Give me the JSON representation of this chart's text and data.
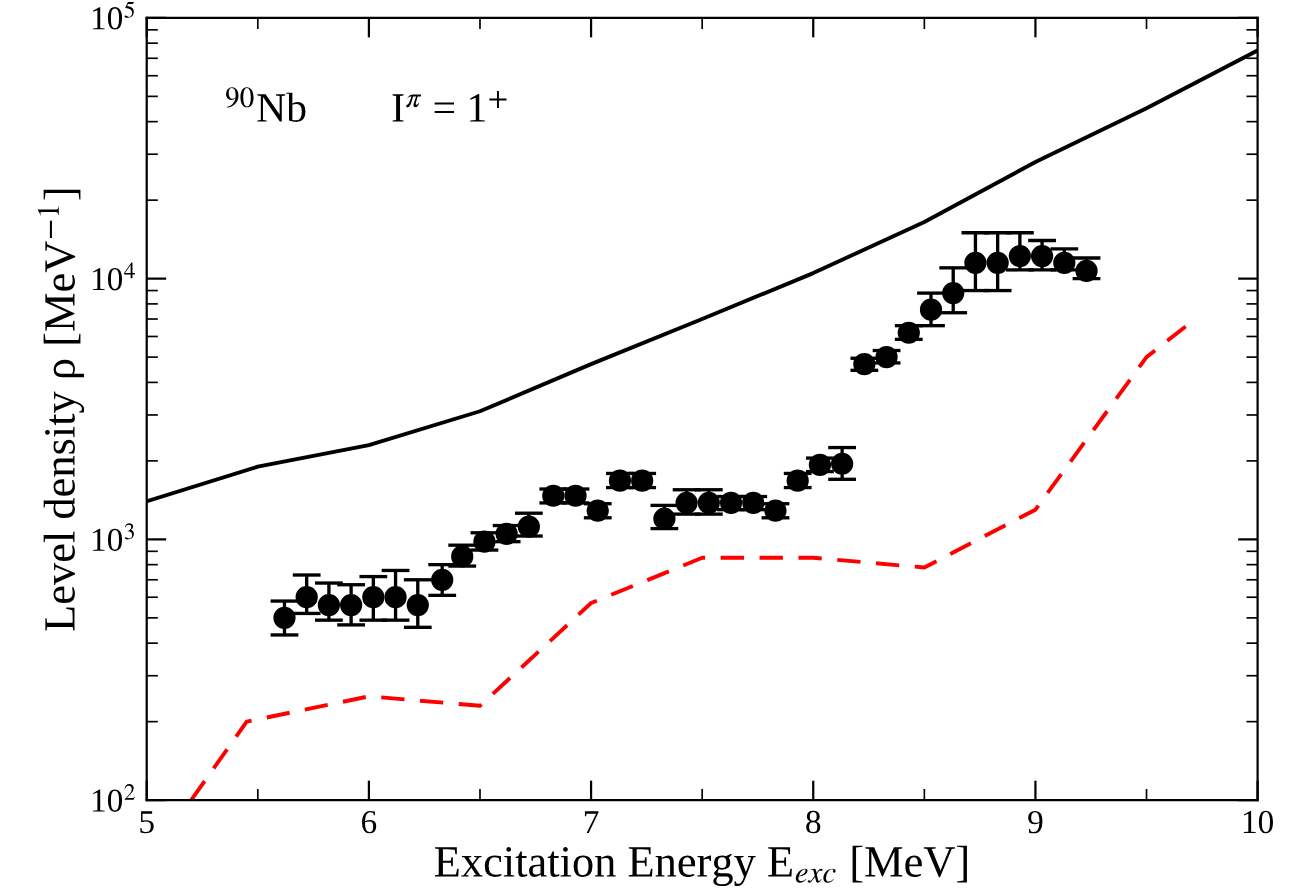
{
  "chart_data": {
    "type": "scatter",
    "xlabel": "Excitation Energy E$_{exc}$ [MeV]",
    "ylabel": "Level density ρ [MeV$^{−1}$]",
    "annotations": [
      "$^{90}$Nb",
      "I$^{π}$ = 1$^{+}$"
    ],
    "log": "y",
    "xlim": [
      5,
      10
    ],
    "ylim": [
      100,
      100000
    ],
    "xticks": [
      5,
      6,
      7,
      8,
      9,
      10
    ],
    "yticks": [
      {
        "value": 100,
        "label": "10$^{2}$"
      },
      {
        "value": 1000,
        "label": "10$^{3}$"
      },
      {
        "value": 10000,
        "label": "10$^{4}$"
      },
      {
        "value": 100000,
        "label": "10$^{5}$"
      }
    ],
    "grid": false,
    "legend": false,
    "series": [
      {
        "type": "line",
        "color": "#000000",
        "line_style": "solid",
        "x": [
          5.0,
          5.5,
          6.0,
          6.5,
          7.0,
          7.5,
          8.0,
          8.5,
          9.0,
          9.5,
          10.0
        ],
        "values": [
          1400,
          1900,
          2300,
          3100,
          4700,
          7000,
          10500,
          16500,
          28000,
          45000,
          75000
        ]
      },
      {
        "type": "line",
        "color": "#ff0000",
        "line_style": "dashed",
        "x": [
          5.2,
          5.45,
          6.0,
          6.5,
          7.0,
          7.5,
          8.0,
          8.5,
          9.0,
          9.5,
          9.7
        ],
        "values": [
          100,
          200,
          250,
          230,
          570,
          850,
          850,
          780,
          1300,
          5000,
          6800
        ]
      },
      {
        "color": "#000000",
        "marker": "circle",
        "x": [
          5.62,
          5.72,
          5.82,
          5.92,
          6.02,
          6.12,
          6.22,
          6.33,
          6.42,
          6.52,
          6.62,
          6.72,
          6.83,
          6.93,
          7.03,
          7.13,
          7.23,
          7.33,
          7.43,
          7.53,
          7.63,
          7.73,
          7.83,
          7.93,
          8.03,
          8.13,
          8.23,
          8.33,
          8.43,
          8.53,
          8.63,
          8.73,
          8.83,
          8.93,
          9.03,
          9.13,
          9.23
        ],
        "values": [
          500,
          600,
          560,
          560,
          600,
          600,
          560,
          700,
          860,
          980,
          1050,
          1120,
          1470,
          1470,
          1290,
          1680,
          1680,
          1200,
          1380,
          1380,
          1380,
          1380,
          1290,
          1680,
          1930,
          1950,
          4700,
          5000,
          6200,
          7600,
          8800,
          11500,
          11500,
          12200,
          12200,
          11500,
          10700
        ],
        "errors": [
          [
            430,
            580
          ],
          [
            520,
            730
          ],
          [
            490,
            680
          ],
          [
            470,
            670
          ],
          [
            490,
            720
          ],
          [
            490,
            760
          ],
          [
            460,
            700
          ],
          [
            610,
            800
          ],
          [
            790,
            950
          ],
          [
            910,
            1060
          ],
          [
            980,
            1130
          ],
          [
            1030,
            1260
          ],
          [
            1380,
            1560
          ],
          [
            1380,
            1560
          ],
          [
            1210,
            1370
          ],
          [
            1580,
            1790
          ],
          [
            1580,
            1790
          ],
          [
            1100,
            1350
          ],
          [
            1250,
            1550
          ],
          [
            1250,
            1550
          ],
          [
            1300,
            1460
          ],
          [
            1300,
            1460
          ],
          [
            1210,
            1370
          ],
          [
            1580,
            1790
          ],
          [
            1820,
            2050
          ],
          [
            1700,
            2250
          ],
          [
            4450,
            4950
          ],
          [
            4750,
            5300
          ],
          [
            5850,
            6600
          ],
          [
            6600,
            8800
          ],
          [
            7400,
            11000
          ],
          [
            9000,
            15000
          ],
          [
            9000,
            15000
          ],
          [
            10800,
            15000
          ],
          [
            10800,
            14000
          ],
          [
            10800,
            13000
          ],
          [
            10000,
            12000
          ]
        ]
      }
    ]
  }
}
